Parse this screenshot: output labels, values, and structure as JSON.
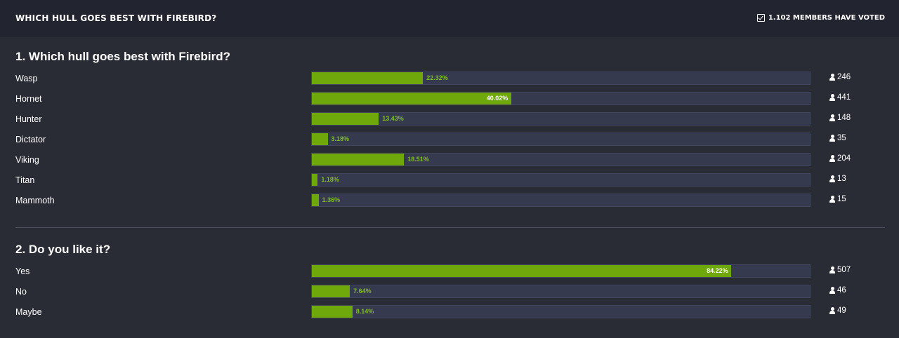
{
  "header": {
    "title": "WHICH HULL GOES BEST WITH FIREBIRD?",
    "votes_text": "1.102 MEMBERS HAVE VOTED",
    "votes_icon": "check-square-icon"
  },
  "colors": {
    "fill": "#6fa80a",
    "track": "#363a4f",
    "background": "#292c35",
    "header": "#222530"
  },
  "questions": [
    {
      "title": "1. Which hull goes best with Firebird?",
      "options": [
        {
          "label": "Wasp",
          "percent_text": "22.32%",
          "percent": 22.32,
          "votes": "246"
        },
        {
          "label": "Hornet",
          "percent_text": "40.02%",
          "percent": 40.02,
          "votes": "441"
        },
        {
          "label": "Hunter",
          "percent_text": "13.43%",
          "percent": 13.43,
          "votes": "148"
        },
        {
          "label": "Dictator",
          "percent_text": "3.18%",
          "percent": 3.18,
          "votes": "35"
        },
        {
          "label": "Viking",
          "percent_text": "18.51%",
          "percent": 18.51,
          "votes": "204"
        },
        {
          "label": "Titan",
          "percent_text": "1.18%",
          "percent": 1.18,
          "votes": "13"
        },
        {
          "label": "Mammoth",
          "percent_text": "1.36%",
          "percent": 1.36,
          "votes": "15"
        }
      ]
    },
    {
      "title": "2. Do you like it?",
      "options": [
        {
          "label": "Yes",
          "percent_text": "84.22%",
          "percent": 84.22,
          "votes": "507"
        },
        {
          "label": "No",
          "percent_text": "7.64%",
          "percent": 7.64,
          "votes": "46"
        },
        {
          "label": "Maybe",
          "percent_text": "8.14%",
          "percent": 8.14,
          "votes": "49"
        }
      ]
    }
  ]
}
